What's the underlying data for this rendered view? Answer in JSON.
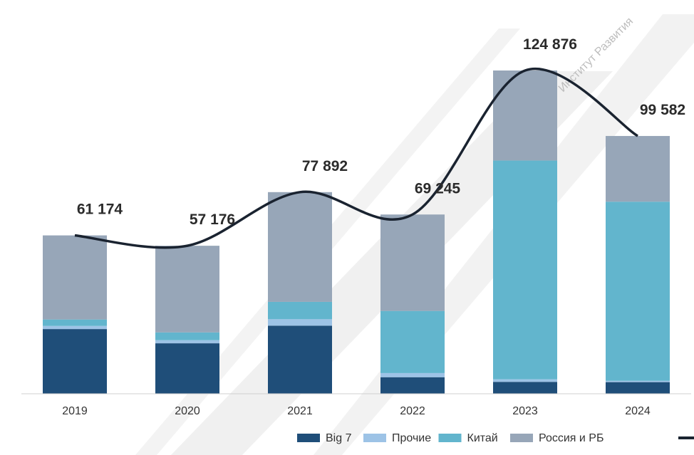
{
  "chart_data": {
    "type": "bar",
    "stacked": true,
    "categories": [
      "2019",
      "2020",
      "2021",
      "2022",
      "2023",
      "2024"
    ],
    "series": [
      {
        "name": "Big 7",
        "color": "#1f4e79",
        "values": [
          25000,
          19500,
          26300,
          6400,
          4600,
          4500
        ]
      },
      {
        "name": "Прочие",
        "color": "#9dc3e6",
        "values": [
          1200,
          1200,
          2500,
          1600,
          1000,
          500
        ]
      },
      {
        "name": "Китай",
        "color": "#62b5cd",
        "values": [
          2500,
          3000,
          6700,
          24000,
          84500,
          69200
        ]
      },
      {
        "name": "Россия и РБ",
        "color": "#97a6b8",
        "values": [
          32474,
          33476,
          42392,
          37245,
          34776,
          25382
        ]
      }
    ],
    "totals": [
      61174,
      57176,
      77892,
      69245,
      124876,
      99582
    ],
    "total_labels": [
      "61 174",
      "57 176",
      "77 892",
      "69 245",
      "124 876",
      "99 582"
    ],
    "trend_line": {
      "series": "totals",
      "color": "#1a2330"
    },
    "ylim": [
      0,
      124876
    ],
    "legend": {
      "position": "bottom-right"
    },
    "grid": false,
    "title": "",
    "xlabel": "",
    "ylabel": ""
  },
  "watermark": "Институт Развития"
}
